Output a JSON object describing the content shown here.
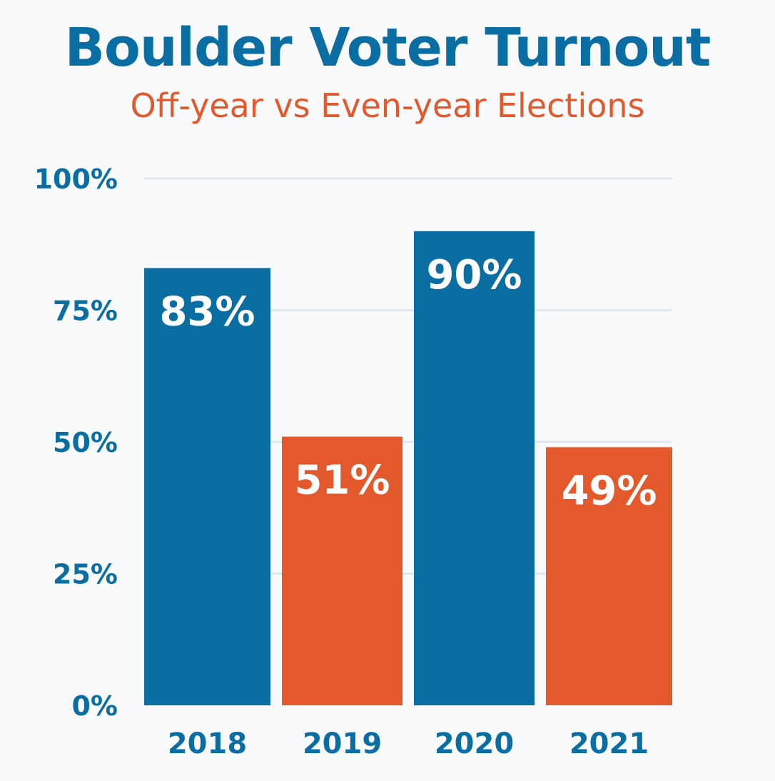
{
  "chart_data": {
    "type": "bar",
    "title": "Boulder Voter Turnout",
    "subtitle": "Off-year vs Even-year Elections",
    "categories": [
      "2018",
      "2019",
      "2020",
      "2021"
    ],
    "values": [
      83,
      51,
      90,
      49
    ],
    "data_labels": [
      "83%",
      "51%",
      "90%",
      "49%"
    ],
    "bar_colors": [
      "#0b6ea3",
      "#e4592b",
      "#0b6ea3",
      "#e4592b"
    ],
    "ylim": [
      0,
      100
    ],
    "yticks": [
      0,
      25,
      50,
      75,
      100
    ],
    "ytick_labels": [
      "0%",
      "25%",
      "50%",
      "75%",
      "100%"
    ],
    "xlabel": "",
    "ylabel": "",
    "grid": true,
    "legend": "none"
  },
  "colors": {
    "title": "#0b6ea3",
    "subtitle": "#e4592b",
    "axis_text": "#0b6ea3",
    "gridline": "#dde8ef",
    "label_text": "#ffffff"
  }
}
